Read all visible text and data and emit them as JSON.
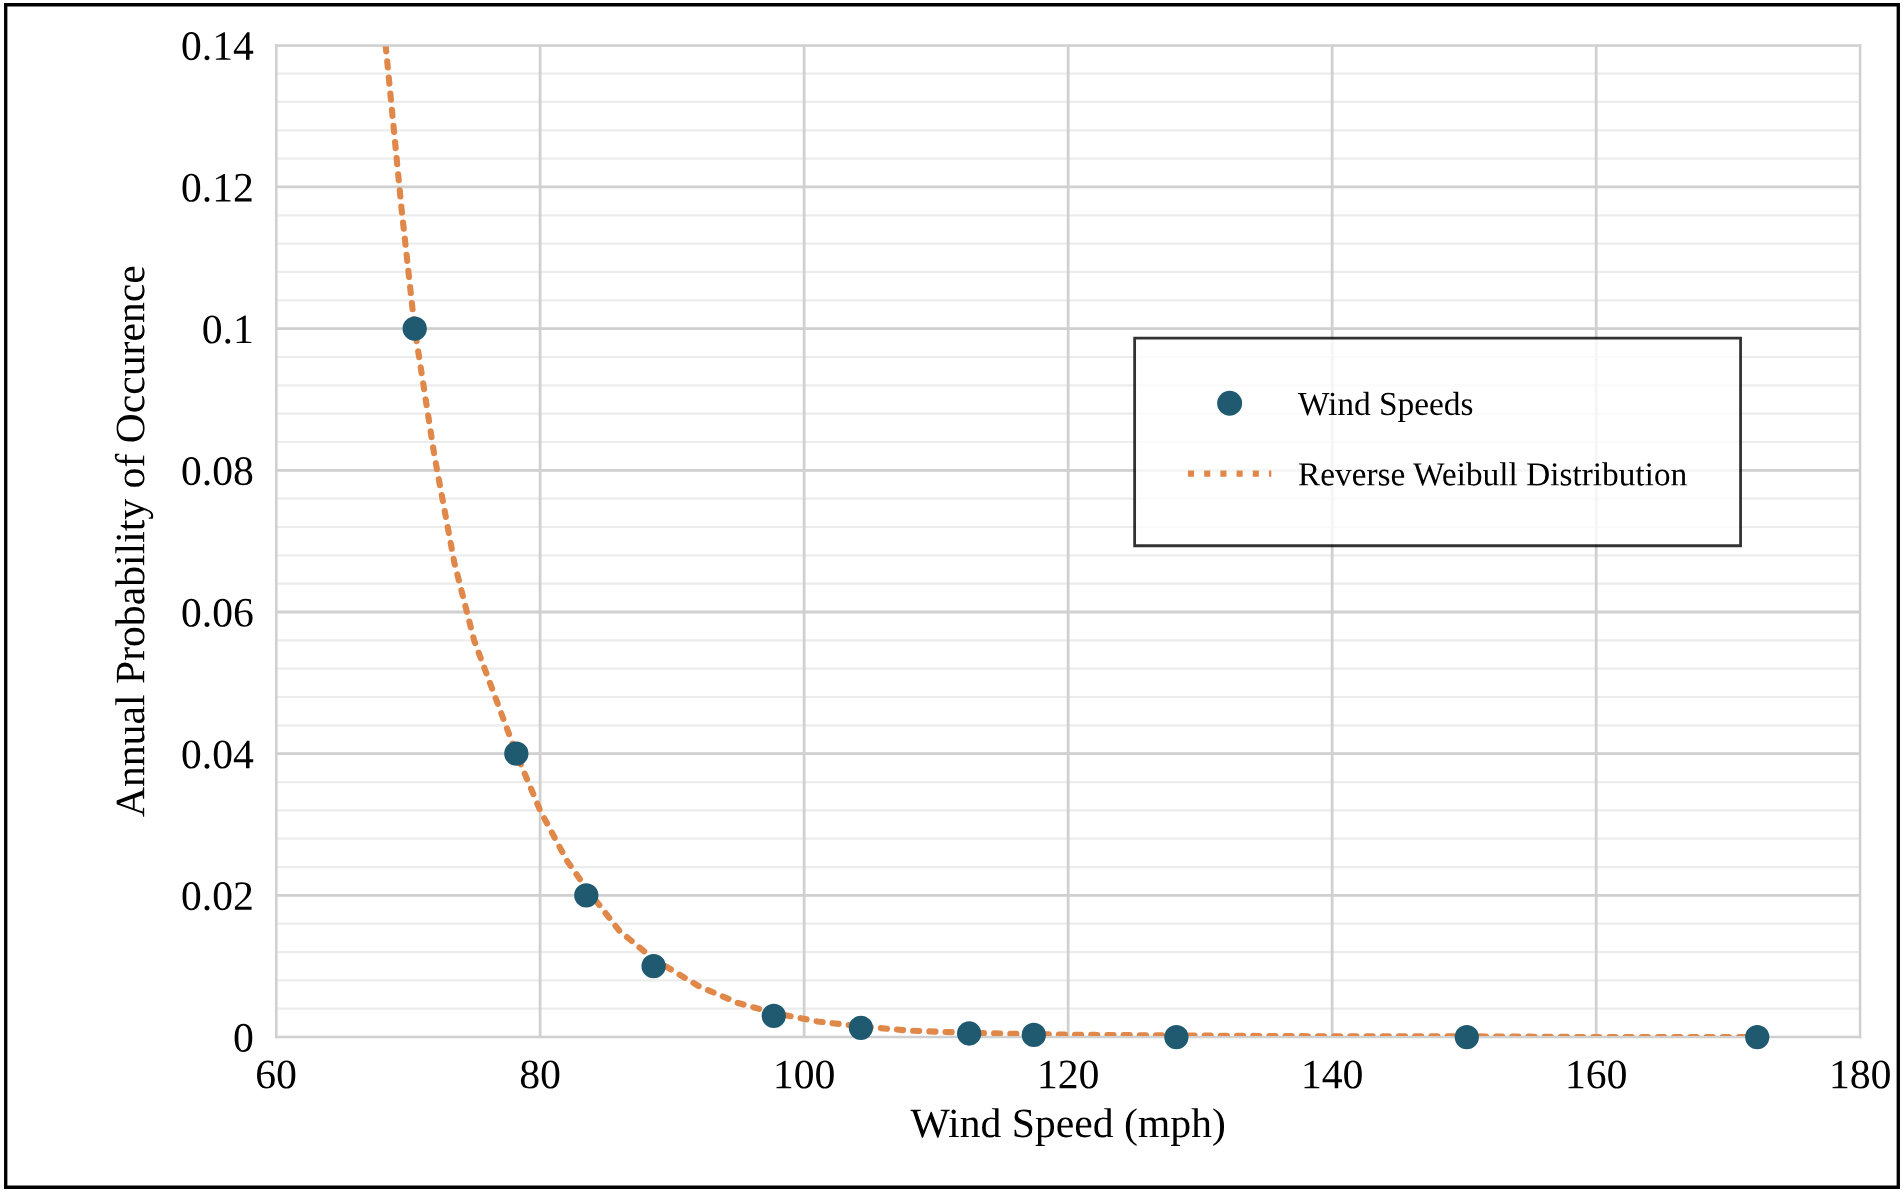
{
  "chart_data": {
    "type": "scatter",
    "xlabel": "Wind Speed (mph)",
    "ylabel": "Annual Probability of Occurence",
    "xlim": [
      60,
      180
    ],
    "xticks": [
      60,
      80,
      100,
      120,
      140,
      160,
      180
    ],
    "ylim": [
      0,
      0.14
    ],
    "yticks": [
      0,
      0.02,
      0.04,
      0.06,
      0.08,
      0.1,
      0.12,
      0.14
    ],
    "grid": true,
    "legend": "right",
    "series": [
      {
        "name": "Wind Speeds",
        "marker": "circle",
        "color": "#1f5a70",
        "x": [
          70.5,
          78.2,
          83.5,
          88.6,
          97.7,
          104.3,
          112.5,
          117.4,
          128.2,
          150.2,
          172.2
        ],
        "values": [
          0.1,
          0.04,
          0.02,
          0.01,
          0.003,
          0.0013,
          0.0005,
          0.0003,
          0,
          0,
          0
        ]
      },
      {
        "name": "Reverse Weibull Distribution",
        "type": "line",
        "line_style": "dotted",
        "color": "#e0874a",
        "x": [
          68.3,
          69.5,
          70.5,
          72,
          73.5,
          75,
          77,
          78.2,
          80,
          82,
          83.5,
          86,
          88.6,
          92,
          95,
          97.7,
          101,
          104.3,
          108,
          112.5,
          117.4,
          122,
          130,
          140,
          150,
          160,
          172.2
        ],
        "values": [
          0.14,
          0.117,
          0.1,
          0.082,
          0.067,
          0.056,
          0.046,
          0.04,
          0.032,
          0.025,
          0.021,
          0.015,
          0.011,
          0.0072,
          0.0048,
          0.0034,
          0.0022,
          0.0015,
          0.0009,
          0.0006,
          0.0004,
          0.0003,
          0.0002,
          0.0001,
          0.0001,
          0,
          0
        ]
      }
    ]
  }
}
